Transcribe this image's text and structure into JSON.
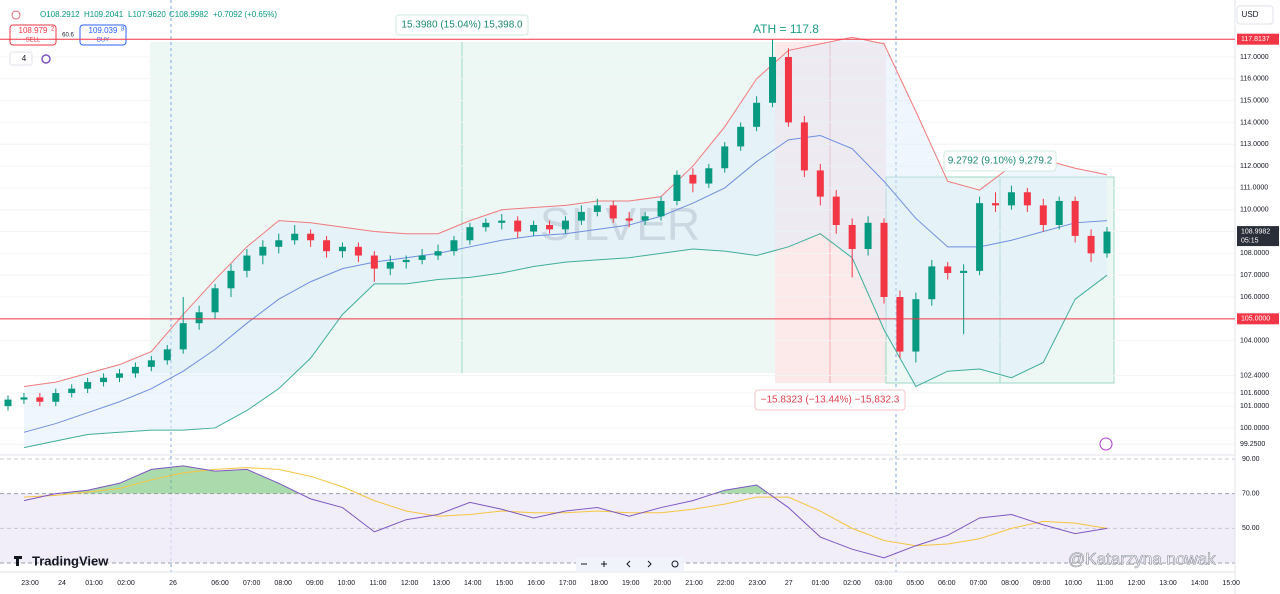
{
  "header": {
    "open": "O108.2912",
    "high": "H109.2041",
    "low": "L107.9620",
    "close": "C108.9982",
    "change": "+0.7092 (+0.65%)",
    "sell_price": "108.979",
    "sell_sup": "2",
    "sell_label": "SELL",
    "spread": "60.6",
    "buy_price": "109.039",
    "buy_sup": "8",
    "buy_label": "BUY",
    "interval": "4",
    "currency": "USD"
  },
  "chart_data": {
    "type": "candlestick",
    "title": "SILVER",
    "open": [
      101.0,
      101.3,
      101.4,
      101.2,
      101.6,
      101.8,
      102.1,
      102.3,
      102.5,
      102.8,
      103.1,
      103.6,
      104.8,
      105.3,
      106.4,
      107.2,
      107.9,
      108.3,
      108.6,
      108.9,
      108.6,
      108.1,
      108.3,
      107.9,
      107.3,
      107.6,
      107.7,
      107.9,
      108.1,
      108.6,
      109.2,
      109.4,
      109.5,
      109.0,
      109.3,
      109.1,
      109.5,
      109.9,
      110.2,
      109.6,
      109.5,
      109.7,
      110.4,
      111.6,
      111.2,
      111.9,
      112.9,
      113.8,
      114.9,
      117.0,
      114.0,
      111.8,
      110.6,
      109.3,
      108.2,
      109.4,
      106.0,
      103.5,
      105.9,
      107.4,
      107.1,
      107.2,
      110.3,
      110.2,
      110.8,
      110.2,
      109.3,
      110.4,
      108.8,
      108.0
    ],
    "high": [
      101.5,
      101.6,
      101.6,
      101.8,
      102.0,
      102.3,
      102.5,
      102.7,
      103.0,
      103.3,
      103.8,
      106.0,
      105.6,
      106.6,
      107.5,
      108.2,
      108.6,
      108.9,
      109.3,
      109.1,
      108.8,
      108.5,
      108.5,
      108.1,
      107.9,
      107.9,
      108.2,
      108.4,
      108.8,
      109.4,
      109.6,
      109.8,
      109.7,
      109.5,
      109.5,
      109.7,
      110.2,
      110.5,
      110.4,
      109.9,
      109.9,
      110.6,
      111.8,
      111.9,
      112.1,
      113.1,
      114.0,
      115.2,
      117.8,
      117.4,
      114.3,
      112.1,
      110.9,
      109.6,
      109.7,
      109.6,
      106.3,
      106.2,
      107.7,
      107.6,
      107.5,
      110.6,
      110.8,
      111.1,
      111.0,
      110.5,
      110.6,
      110.6,
      109.1,
      109.2
    ],
    "low": [
      100.8,
      101.1,
      101.0,
      101.0,
      101.4,
      101.6,
      101.9,
      102.1,
      102.3,
      102.6,
      102.9,
      103.4,
      104.5,
      105.0,
      106.0,
      106.9,
      107.5,
      108.0,
      108.4,
      108.3,
      107.8,
      107.8,
      107.6,
      106.7,
      107.0,
      107.3,
      107.5,
      107.7,
      107.9,
      108.4,
      109.0,
      109.1,
      108.7,
      108.8,
      108.9,
      108.9,
      109.3,
      109.7,
      109.4,
      109.2,
      109.3,
      109.5,
      110.2,
      110.8,
      111.0,
      111.7,
      112.7,
      113.6,
      114.7,
      113.8,
      111.5,
      110.2,
      108.9,
      106.9,
      107.9,
      105.7,
      103.2,
      103.0,
      105.6,
      106.8,
      104.3,
      107.0,
      109.9,
      110.0,
      109.9,
      109.0,
      109.1,
      108.5,
      107.6,
      107.8
    ],
    "close": [
      101.3,
      101.4,
      101.2,
      101.6,
      101.8,
      102.1,
      102.3,
      102.5,
      102.8,
      103.1,
      103.6,
      104.8,
      105.3,
      106.4,
      107.2,
      107.9,
      108.3,
      108.6,
      108.9,
      108.6,
      108.1,
      108.3,
      107.9,
      107.3,
      107.6,
      107.7,
      107.9,
      108.1,
      108.6,
      109.2,
      109.4,
      109.5,
      109.0,
      109.3,
      109.1,
      109.5,
      109.9,
      110.2,
      109.6,
      109.5,
      109.7,
      110.4,
      111.6,
      111.2,
      111.9,
      112.9,
      113.8,
      114.9,
      117.0,
      114.0,
      111.8,
      110.6,
      109.3,
      108.2,
      109.4,
      106.0,
      103.5,
      105.9,
      107.4,
      107.1,
      107.2,
      110.3,
      110.2,
      110.8,
      110.2,
      109.3,
      110.4,
      108.8,
      108.0,
      108.9982
    ],
    "up_color": "#089981",
    "down_color": "#f23645",
    "bands": [
      {
        "name": "upper",
        "color": "#f07a7a",
        "values": [
          101.9,
          102.1,
          102.5,
          102.9,
          103.5,
          105.2,
          106.8,
          108.3,
          109.5,
          109.4,
          109.2,
          109.0,
          108.9,
          108.9,
          109.5,
          110.0,
          110.1,
          110.2,
          110.4,
          110.4,
          110.6,
          112.0,
          113.8,
          116.0,
          117.3,
          117.6,
          117.9,
          117.6,
          114.5,
          111.3,
          110.9,
          112.0,
          112.3,
          111.9,
          111.6
        ]
      },
      {
        "name": "basis",
        "color": "#6f8fe0",
        "values": [
          99.8,
          100.2,
          100.7,
          101.2,
          101.8,
          102.6,
          103.6,
          104.8,
          105.9,
          106.7,
          107.3,
          107.6,
          107.8,
          108.0,
          108.3,
          108.6,
          108.8,
          108.9,
          109.1,
          109.3,
          109.7,
          110.3,
          111.0,
          112.2,
          113.2,
          113.4,
          112.8,
          111.3,
          109.6,
          108.3,
          108.3,
          108.6,
          109.0,
          109.4,
          109.5
        ]
      },
      {
        "name": "lower",
        "color": "#3fae9a",
        "values": [
          99.1,
          99.4,
          99.7,
          99.8,
          99.9,
          99.9,
          100.0,
          100.8,
          101.8,
          103.2,
          105.2,
          106.6,
          106.6,
          106.8,
          106.9,
          107.1,
          107.4,
          107.6,
          107.7,
          107.8,
          108.0,
          108.2,
          108.1,
          107.9,
          108.3,
          108.9,
          107.8,
          104.5,
          101.9,
          102.6,
          102.7,
          102.3,
          103.0,
          105.9,
          107.0
        ]
      }
    ],
    "ylim": [
      98.76,
      119.61
    ],
    "yticks": [
      {
        "value": 117,
        "label": "117.0000"
      },
      {
        "value": 116,
        "label": "116.0000"
      },
      {
        "value": 115,
        "label": "115.0000"
      },
      {
        "value": 114,
        "label": "114.0000"
      },
      {
        "value": 113,
        "label": "113.0000"
      },
      {
        "value": 112,
        "label": "112.0000"
      },
      {
        "value": 111,
        "label": "111.0000"
      },
      {
        "value": 110,
        "label": "110.0000"
      },
      {
        "value": 109,
        "label": "109.0000"
      },
      {
        "value": 108,
        "label": "108.0000"
      },
      {
        "value": 107,
        "label": "107.0000"
      },
      {
        "value": 106,
        "label": "106.0000"
      },
      {
        "value": 104,
        "label": "104.0000"
      },
      {
        "value": 102.4,
        "label": "102.4000"
      },
      {
        "value": 101.6,
        "label": "101.6000"
      },
      {
        "value": 101,
        "label": "101.0000"
      },
      {
        "value": 100,
        "label": "100.0000"
      },
      {
        "value": 99.25,
        "label": "99.2500"
      }
    ],
    "grid": true,
    "price_badges": [
      {
        "value": 117.8137,
        "color": "#f23645"
      },
      {
        "value": {
          "value": 105,
          "label": "105.0000"
        },
        "color": "#f23645"
      },
      {
        "value": 108.9982,
        "color": "#2a2e39",
        "countdown": "05:15"
      }
    ],
    "x_labels": [
      "23:00",
      "24",
      "01:00",
      "02:00",
      "26",
      "06:00",
      "07:00",
      "08:00",
      "09:00",
      "10:00",
      "11:00",
      "12:00",
      "13:00",
      "14:00",
      "15:00",
      "16:00",
      "17:00",
      "18:00",
      "19:00",
      "20:00",
      "21:00",
      "22:00",
      "23:00",
      "27",
      "01:00",
      "02:00",
      "03:00",
      "05:00",
      "06:00",
      "07:00",
      "08:00",
      "09:00",
      "10:00",
      "11:00",
      "12:00",
      "13:00",
      "14:00",
      "15:00"
    ],
    "annotations": {
      "range_up": "15.3980 (15.04%) 15,398.0",
      "ath": "ATH = 117.8",
      "range_down": "−15.8323 (−13.44%) −15,832.3",
      "range_rebound": "9.2792 (9.10%) 9,279.2"
    },
    "rsi": {
      "series": [
        {
          "name": "rsi",
          "color": "#7e57c2",
          "values": [
            66,
            70,
            72,
            76,
            84,
            86,
            83,
            84,
            76,
            67,
            62,
            48,
            55,
            58,
            65,
            61,
            56,
            60,
            62,
            57,
            62,
            66,
            72,
            75,
            62,
            45,
            38,
            33,
            40,
            46,
            56,
            58,
            52,
            47,
            50
          ]
        },
        {
          "name": "rsi-ma",
          "color": "#f5c542",
          "values": [
            68,
            69,
            71,
            73,
            78,
            82,
            84,
            85,
            84,
            80,
            74,
            66,
            60,
            57,
            58,
            60,
            59,
            59,
            60,
            59,
            59,
            61,
            64,
            68,
            68,
            60,
            50,
            43,
            40,
            41,
            44,
            50,
            54,
            53,
            50
          ]
        }
      ],
      "ylim": [
        26,
        92.3
      ],
      "band": [
        30,
        70
      ],
      "yticks": [
        {
          "value": 90,
          "label": "90.00"
        },
        {
          "value": 70,
          "label": "70.00"
        },
        {
          "value": 50,
          "label": "50.00"
        }
      ]
    }
  },
  "branding": {
    "logo": "TradingView",
    "watermark": "@Katarzyna nowak"
  }
}
